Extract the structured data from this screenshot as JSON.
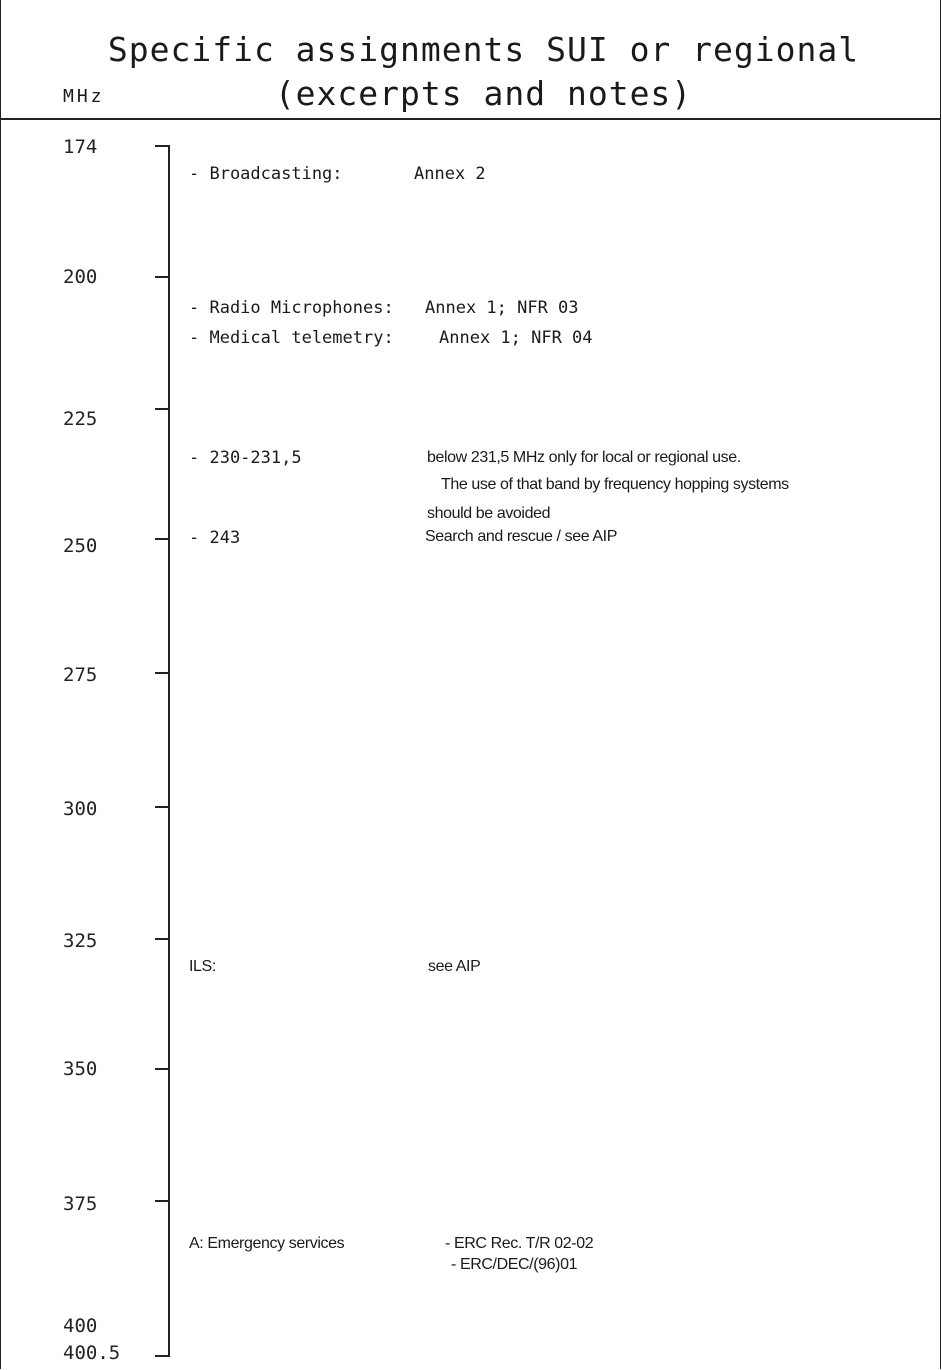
{
  "header": {
    "title_line1": "Specific assignments SUI or regional",
    "title_line2": "(excerpts and notes)",
    "unit": "MHz"
  },
  "axis": {
    "ticks": [
      "174",
      "200",
      "225",
      "250",
      "275",
      "300",
      "325",
      "350",
      "375",
      "400",
      "400.5"
    ]
  },
  "entries": {
    "broadcasting_label": "- Broadcasting:",
    "broadcasting_value": "Annex 2",
    "radio_mic_label": "- Radio Microphones:",
    "radio_mic_value": "Annex 1; NFR 03",
    "medical_label": "- Medical telemetry:",
    "medical_value": "Annex 1; NFR 04",
    "band_230_label": "- 230-231,5",
    "band_230_line1": "below 231,5 MHz only for local or regional use.",
    "band_230_line2": "The use of that band by frequency hopping systems",
    "band_230_line3": "should be avoided",
    "band_243_label": "- 243",
    "band_243_value": "Search and rescue / see AIP",
    "ils_label": "ILS:",
    "ils_value": "see AIP",
    "emergency_label": "A: Emergency services",
    "emergency_value1": "- ERC Rec. T/R 02-02",
    "emergency_value2": "- ERC/DEC/(96)01"
  }
}
